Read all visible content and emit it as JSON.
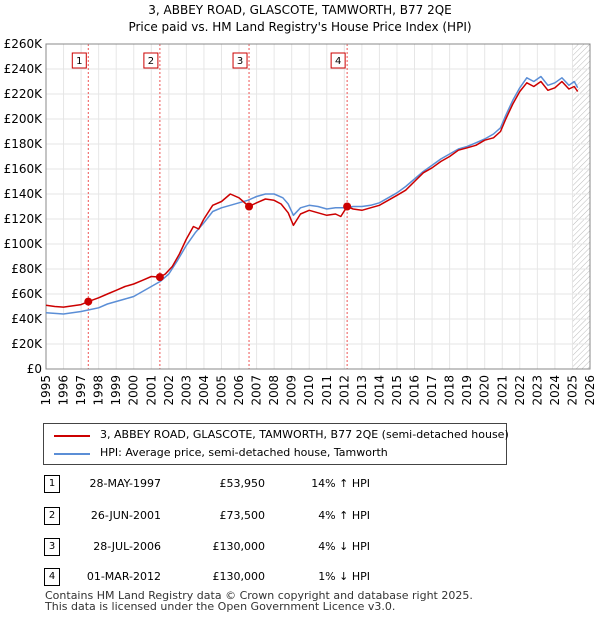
{
  "chart_data": {
    "type": "line",
    "title": "3, ABBEY ROAD, GLASCOTE, TAMWORTH, B77 2QE",
    "subtitle": "Price paid vs. HM Land Registry's House Price Index (HPI)",
    "xlabel": "",
    "ylabel": "",
    "xlim": [
      1995,
      2026
    ],
    "ylim": [
      0,
      260000
    ],
    "x_ticks": [
      1995,
      1996,
      1997,
      1998,
      1999,
      2000,
      2001,
      2002,
      2003,
      2004,
      2005,
      2006,
      2007,
      2008,
      2009,
      2010,
      2011,
      2012,
      2013,
      2014,
      2015,
      2016,
      2017,
      2018,
      2019,
      2020,
      2021,
      2022,
      2023,
      2024,
      2025,
      2026
    ],
    "y_ticks": [
      0,
      20000,
      40000,
      60000,
      80000,
      100000,
      120000,
      140000,
      160000,
      180000,
      200000,
      220000,
      240000,
      260000
    ],
    "y_tick_labels": [
      "£0",
      "£20K",
      "£40K",
      "£60K",
      "£80K",
      "£100K",
      "£120K",
      "£140K",
      "£160K",
      "£180K",
      "£200K",
      "£220K",
      "£240K",
      "£260K"
    ],
    "grid": true,
    "hatch_from": 2025.0,
    "series": [
      {
        "name": "3, ABBEY ROAD, GLASCOTE, TAMWORTH, B77 2QE (semi-detached house)",
        "color": "#cc0000",
        "points": [
          [
            1995.0,
            51000
          ],
          [
            1995.5,
            50000
          ],
          [
            1996.0,
            49500
          ],
          [
            1996.5,
            50500
          ],
          [
            1997.0,
            51500
          ],
          [
            1997.41,
            53950
          ],
          [
            1998.0,
            57000
          ],
          [
            1998.5,
            60000
          ],
          [
            1999.0,
            63000
          ],
          [
            1999.5,
            66000
          ],
          [
            2000.0,
            68000
          ],
          [
            2000.5,
            71000
          ],
          [
            2001.0,
            74000
          ],
          [
            2001.49,
            73500
          ],
          [
            2001.8,
            76000
          ],
          [
            2002.2,
            82000
          ],
          [
            2002.6,
            92000
          ],
          [
            2003.0,
            104000
          ],
          [
            2003.4,
            114000
          ],
          [
            2003.7,
            112000
          ],
          [
            2004.0,
            120000
          ],
          [
            2004.5,
            131000
          ],
          [
            2005.0,
            134000
          ],
          [
            2005.5,
            140000
          ],
          [
            2006.0,
            137000
          ],
          [
            2006.4,
            132000
          ],
          [
            2006.57,
            130000
          ],
          [
            2007.0,
            133000
          ],
          [
            2007.5,
            136000
          ],
          [
            2008.0,
            135000
          ],
          [
            2008.4,
            132000
          ],
          [
            2008.8,
            125000
          ],
          [
            2009.1,
            115000
          ],
          [
            2009.5,
            124000
          ],
          [
            2010.0,
            127000
          ],
          [
            2010.5,
            125000
          ],
          [
            2011.0,
            123000
          ],
          [
            2011.5,
            124000
          ],
          [
            2011.8,
            122000
          ],
          [
            2012.16,
            130000
          ],
          [
            2012.5,
            128000
          ],
          [
            2013.0,
            127000
          ],
          [
            2013.5,
            129000
          ],
          [
            2014.0,
            131000
          ],
          [
            2014.5,
            135000
          ],
          [
            2015.0,
            139000
          ],
          [
            2015.5,
            143000
          ],
          [
            2016.0,
            150000
          ],
          [
            2016.5,
            157000
          ],
          [
            2017.0,
            161000
          ],
          [
            2017.5,
            166000
          ],
          [
            2018.0,
            170000
          ],
          [
            2018.5,
            175000
          ],
          [
            2019.0,
            177000
          ],
          [
            2019.5,
            179000
          ],
          [
            2020.0,
            183000
          ],
          [
            2020.5,
            185000
          ],
          [
            2020.9,
            190000
          ],
          [
            2021.2,
            200000
          ],
          [
            2021.6,
            212000
          ],
          [
            2022.0,
            222000
          ],
          [
            2022.4,
            229000
          ],
          [
            2022.8,
            226000
          ],
          [
            2023.2,
            230000
          ],
          [
            2023.6,
            223000
          ],
          [
            2024.0,
            225000
          ],
          [
            2024.4,
            230000
          ],
          [
            2024.8,
            224000
          ],
          [
            2025.1,
            226000
          ],
          [
            2025.3,
            222000
          ]
        ]
      },
      {
        "name": "HPI: Average price, semi-detached house, Tamworth",
        "color": "#5b8ed6",
        "points": [
          [
            1995.0,
            45000
          ],
          [
            1995.5,
            44500
          ],
          [
            1996.0,
            44000
          ],
          [
            1996.5,
            45000
          ],
          [
            1997.0,
            46000
          ],
          [
            1997.5,
            47500
          ],
          [
            1998.0,
            49000
          ],
          [
            1998.5,
            52000
          ],
          [
            1999.0,
            54000
          ],
          [
            1999.5,
            56000
          ],
          [
            2000.0,
            58000
          ],
          [
            2000.5,
            62000
          ],
          [
            2001.0,
            66000
          ],
          [
            2001.5,
            70000
          ],
          [
            2002.0,
            76000
          ],
          [
            2002.5,
            87000
          ],
          [
            2003.0,
            99000
          ],
          [
            2003.5,
            109000
          ],
          [
            2004.0,
            117000
          ],
          [
            2004.5,
            126000
          ],
          [
            2005.0,
            129000
          ],
          [
            2005.5,
            131000
          ],
          [
            2006.0,
            133000
          ],
          [
            2006.5,
            135000
          ],
          [
            2007.0,
            138000
          ],
          [
            2007.5,
            140000
          ],
          [
            2008.0,
            140000
          ],
          [
            2008.5,
            137000
          ],
          [
            2008.8,
            132000
          ],
          [
            2009.1,
            123000
          ],
          [
            2009.5,
            129000
          ],
          [
            2010.0,
            131000
          ],
          [
            2010.5,
            130000
          ],
          [
            2011.0,
            128000
          ],
          [
            2011.5,
            129000
          ],
          [
            2012.0,
            129000
          ],
          [
            2012.5,
            130000
          ],
          [
            2013.0,
            130000
          ],
          [
            2013.5,
            131000
          ],
          [
            2014.0,
            133000
          ],
          [
            2014.5,
            137000
          ],
          [
            2015.0,
            141000
          ],
          [
            2015.5,
            146000
          ],
          [
            2016.0,
            152000
          ],
          [
            2016.5,
            158000
          ],
          [
            2017.0,
            163000
          ],
          [
            2017.5,
            168000
          ],
          [
            2018.0,
            172000
          ],
          [
            2018.5,
            176000
          ],
          [
            2019.0,
            178000
          ],
          [
            2019.5,
            181000
          ],
          [
            2020.0,
            184000
          ],
          [
            2020.5,
            188000
          ],
          [
            2020.9,
            193000
          ],
          [
            2021.2,
            203000
          ],
          [
            2021.6,
            215000
          ],
          [
            2022.0,
            225000
          ],
          [
            2022.4,
            233000
          ],
          [
            2022.8,
            230000
          ],
          [
            2023.2,
            234000
          ],
          [
            2023.6,
            227000
          ],
          [
            2024.0,
            229000
          ],
          [
            2024.4,
            233000
          ],
          [
            2024.8,
            227000
          ],
          [
            2025.1,
            230000
          ],
          [
            2025.3,
            225000
          ]
        ]
      }
    ],
    "sales": [
      {
        "num": "1",
        "x": 1997.41,
        "price": 53950
      },
      {
        "num": "2",
        "x": 2001.49,
        "price": 73500
      },
      {
        "num": "3",
        "x": 2006.57,
        "price": 130000
      },
      {
        "num": "4",
        "x": 2012.16,
        "price": 130000
      }
    ]
  },
  "legend": {
    "property": "3, ABBEY ROAD, GLASCOTE, TAMWORTH, B77 2QE (semi-detached house)",
    "hpi": "HPI: Average price, semi-detached house, Tamworth",
    "property_color": "#cc0000",
    "hpi_color": "#5b8ed6"
  },
  "sales_table": [
    {
      "num": "1",
      "date": "28-MAY-1997",
      "price": "£53,950",
      "hpi": "14% ↑ HPI"
    },
    {
      "num": "2",
      "date": "26-JUN-2001",
      "price": "£73,500",
      "hpi": "4% ↑ HPI"
    },
    {
      "num": "3",
      "date": "28-JUL-2006",
      "price": "£130,000",
      "hpi": "4% ↓ HPI"
    },
    {
      "num": "4",
      "date": "01-MAR-2012",
      "price": "£130,000",
      "hpi": "1% ↓ HPI"
    }
  ],
  "footer": {
    "line1": "Contains HM Land Registry data © Crown copyright and database right 2025.",
    "line2": "This data is licensed under the Open Government Licence v3.0."
  }
}
